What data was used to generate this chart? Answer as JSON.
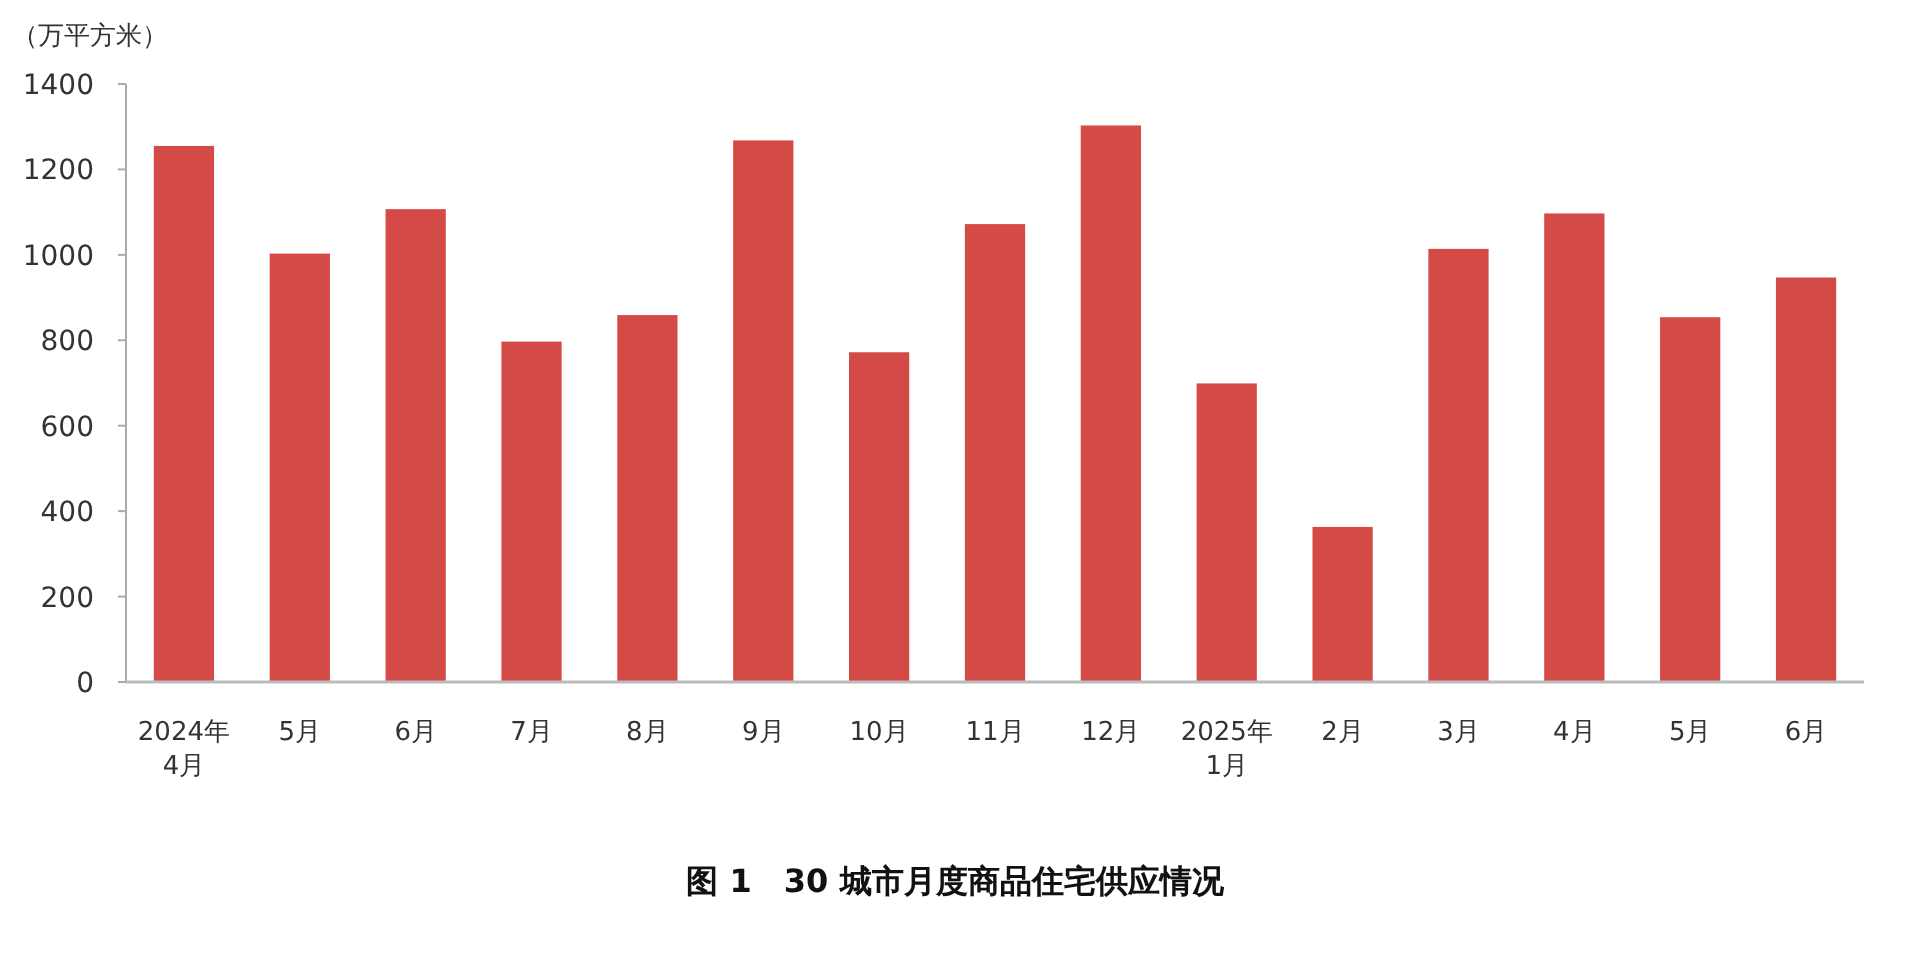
{
  "chart_data": {
    "type": "bar",
    "title": "图 1　30 城市月度商品住宅供应情况",
    "ylabel": "（万平方米）",
    "categories": [
      "2024年4月",
      "5月",
      "6月",
      "7月",
      "8月",
      "9月",
      "10月",
      "11月",
      "12月",
      "2025年1月",
      "2月",
      "3月",
      "4月",
      "5月",
      "6月"
    ],
    "values": [
      1255,
      1003,
      1107,
      797,
      859,
      1268,
      772,
      1072,
      1303,
      699,
      363,
      1014,
      1097,
      854,
      947
    ],
    "color": "#d44a47",
    "ylim": [
      0,
      1400
    ],
    "yticks": [
      0,
      200,
      400,
      600,
      800,
      1000,
      1200,
      1400
    ]
  }
}
